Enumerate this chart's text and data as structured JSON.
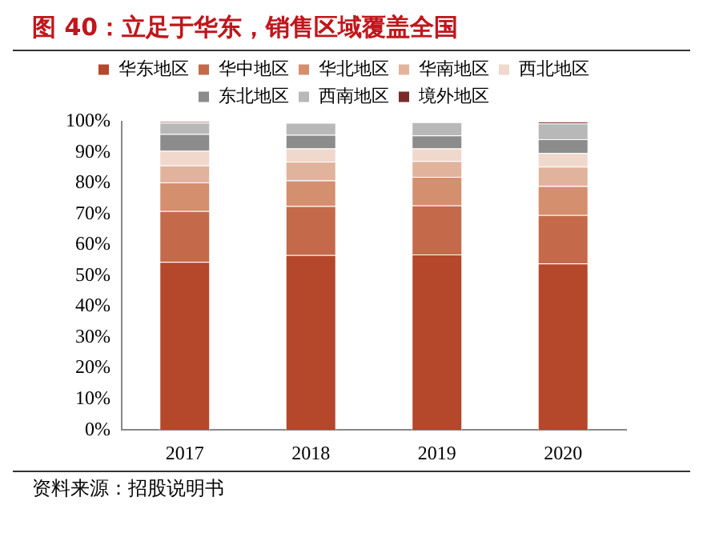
{
  "chart_data": {
    "type": "bar",
    "title": "图 40：立足于华东，销售区域覆盖全国",
    "stacked": true,
    "legend": "top",
    "grid": false,
    "categories": [
      "2017",
      "2018",
      "2019",
      "2020"
    ],
    "ylim": [
      0,
      100
    ],
    "yticks": [
      {
        "value": 0,
        "label": "0%"
      },
      {
        "value": 10,
        "label": "10%"
      },
      {
        "value": 20,
        "label": "20%"
      },
      {
        "value": 30,
        "label": "30%"
      },
      {
        "value": 40,
        "label": "40%"
      },
      {
        "value": 50,
        "label": "50%"
      },
      {
        "value": 60,
        "label": "60%"
      },
      {
        "value": 70,
        "label": "70%"
      },
      {
        "value": 80,
        "label": "80%"
      },
      {
        "value": 90,
        "label": "90%"
      },
      {
        "value": 100,
        "label": "100%"
      }
    ],
    "series": [
      {
        "name": "华东地区",
        "color": "#b5472b",
        "values": [
          54.5,
          56.7,
          56.9,
          54.0
        ]
      },
      {
        "name": "华中地区",
        "color": "#c46a4a",
        "values": [
          16.5,
          15.9,
          15.9,
          15.7
        ]
      },
      {
        "name": "华北地区",
        "color": "#d48f6f",
        "values": [
          9.3,
          8.3,
          9.3,
          9.4
        ]
      },
      {
        "name": "华南地区",
        "color": "#e2b39c",
        "values": [
          5.5,
          6.1,
          5.1,
          6.3
        ]
      },
      {
        "name": "西北地区",
        "color": "#f0d8cc",
        "values": [
          4.7,
          4.3,
          4.1,
          4.4
        ]
      },
      {
        "name": "东北地区",
        "color": "#8c8c8c",
        "values": [
          5.5,
          4.4,
          4.2,
          4.5
        ]
      },
      {
        "name": "西南地区",
        "color": "#b8b8b8",
        "values": [
          3.7,
          3.9,
          4.3,
          5.1
        ]
      },
      {
        "name": "境外地区",
        "color": "#7a2a2a",
        "values": [
          0.3,
          null,
          null,
          0.6
        ]
      }
    ],
    "annotations": [
      "资料来源：招股说明书"
    ]
  }
}
